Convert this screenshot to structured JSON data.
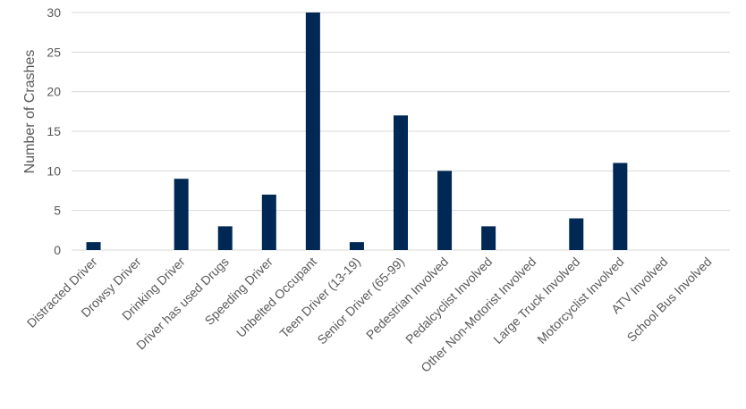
{
  "chart_data": {
    "type": "bar",
    "ylabel": "Number of Crashes",
    "xlabel": "",
    "ylim": [
      0,
      30
    ],
    "yticks": [
      0,
      5,
      10,
      15,
      20,
      25,
      30
    ],
    "grid": true,
    "bar_color": "#002855",
    "grid_color": "#d9d9d9",
    "categories": [
      "Distracted Driver",
      "Drowsy Driver",
      "Drinking Driver",
      "Driver has used Drugs",
      "Speeding Driver",
      "Unbelted Occupant",
      "Teen Driver (13-19)",
      "Senior Driver (65-99)",
      "Pedestrian Involved",
      "Pedalcyclist Involved",
      "Other Non-Motorist Involved",
      "Large Truck Involved",
      "Motorcyclist Involved",
      "ATV Involved",
      "School Bus Involved"
    ],
    "values": [
      1,
      0,
      9,
      3,
      7,
      30,
      1,
      17,
      10,
      3,
      0,
      4,
      11,
      0,
      0
    ]
  }
}
